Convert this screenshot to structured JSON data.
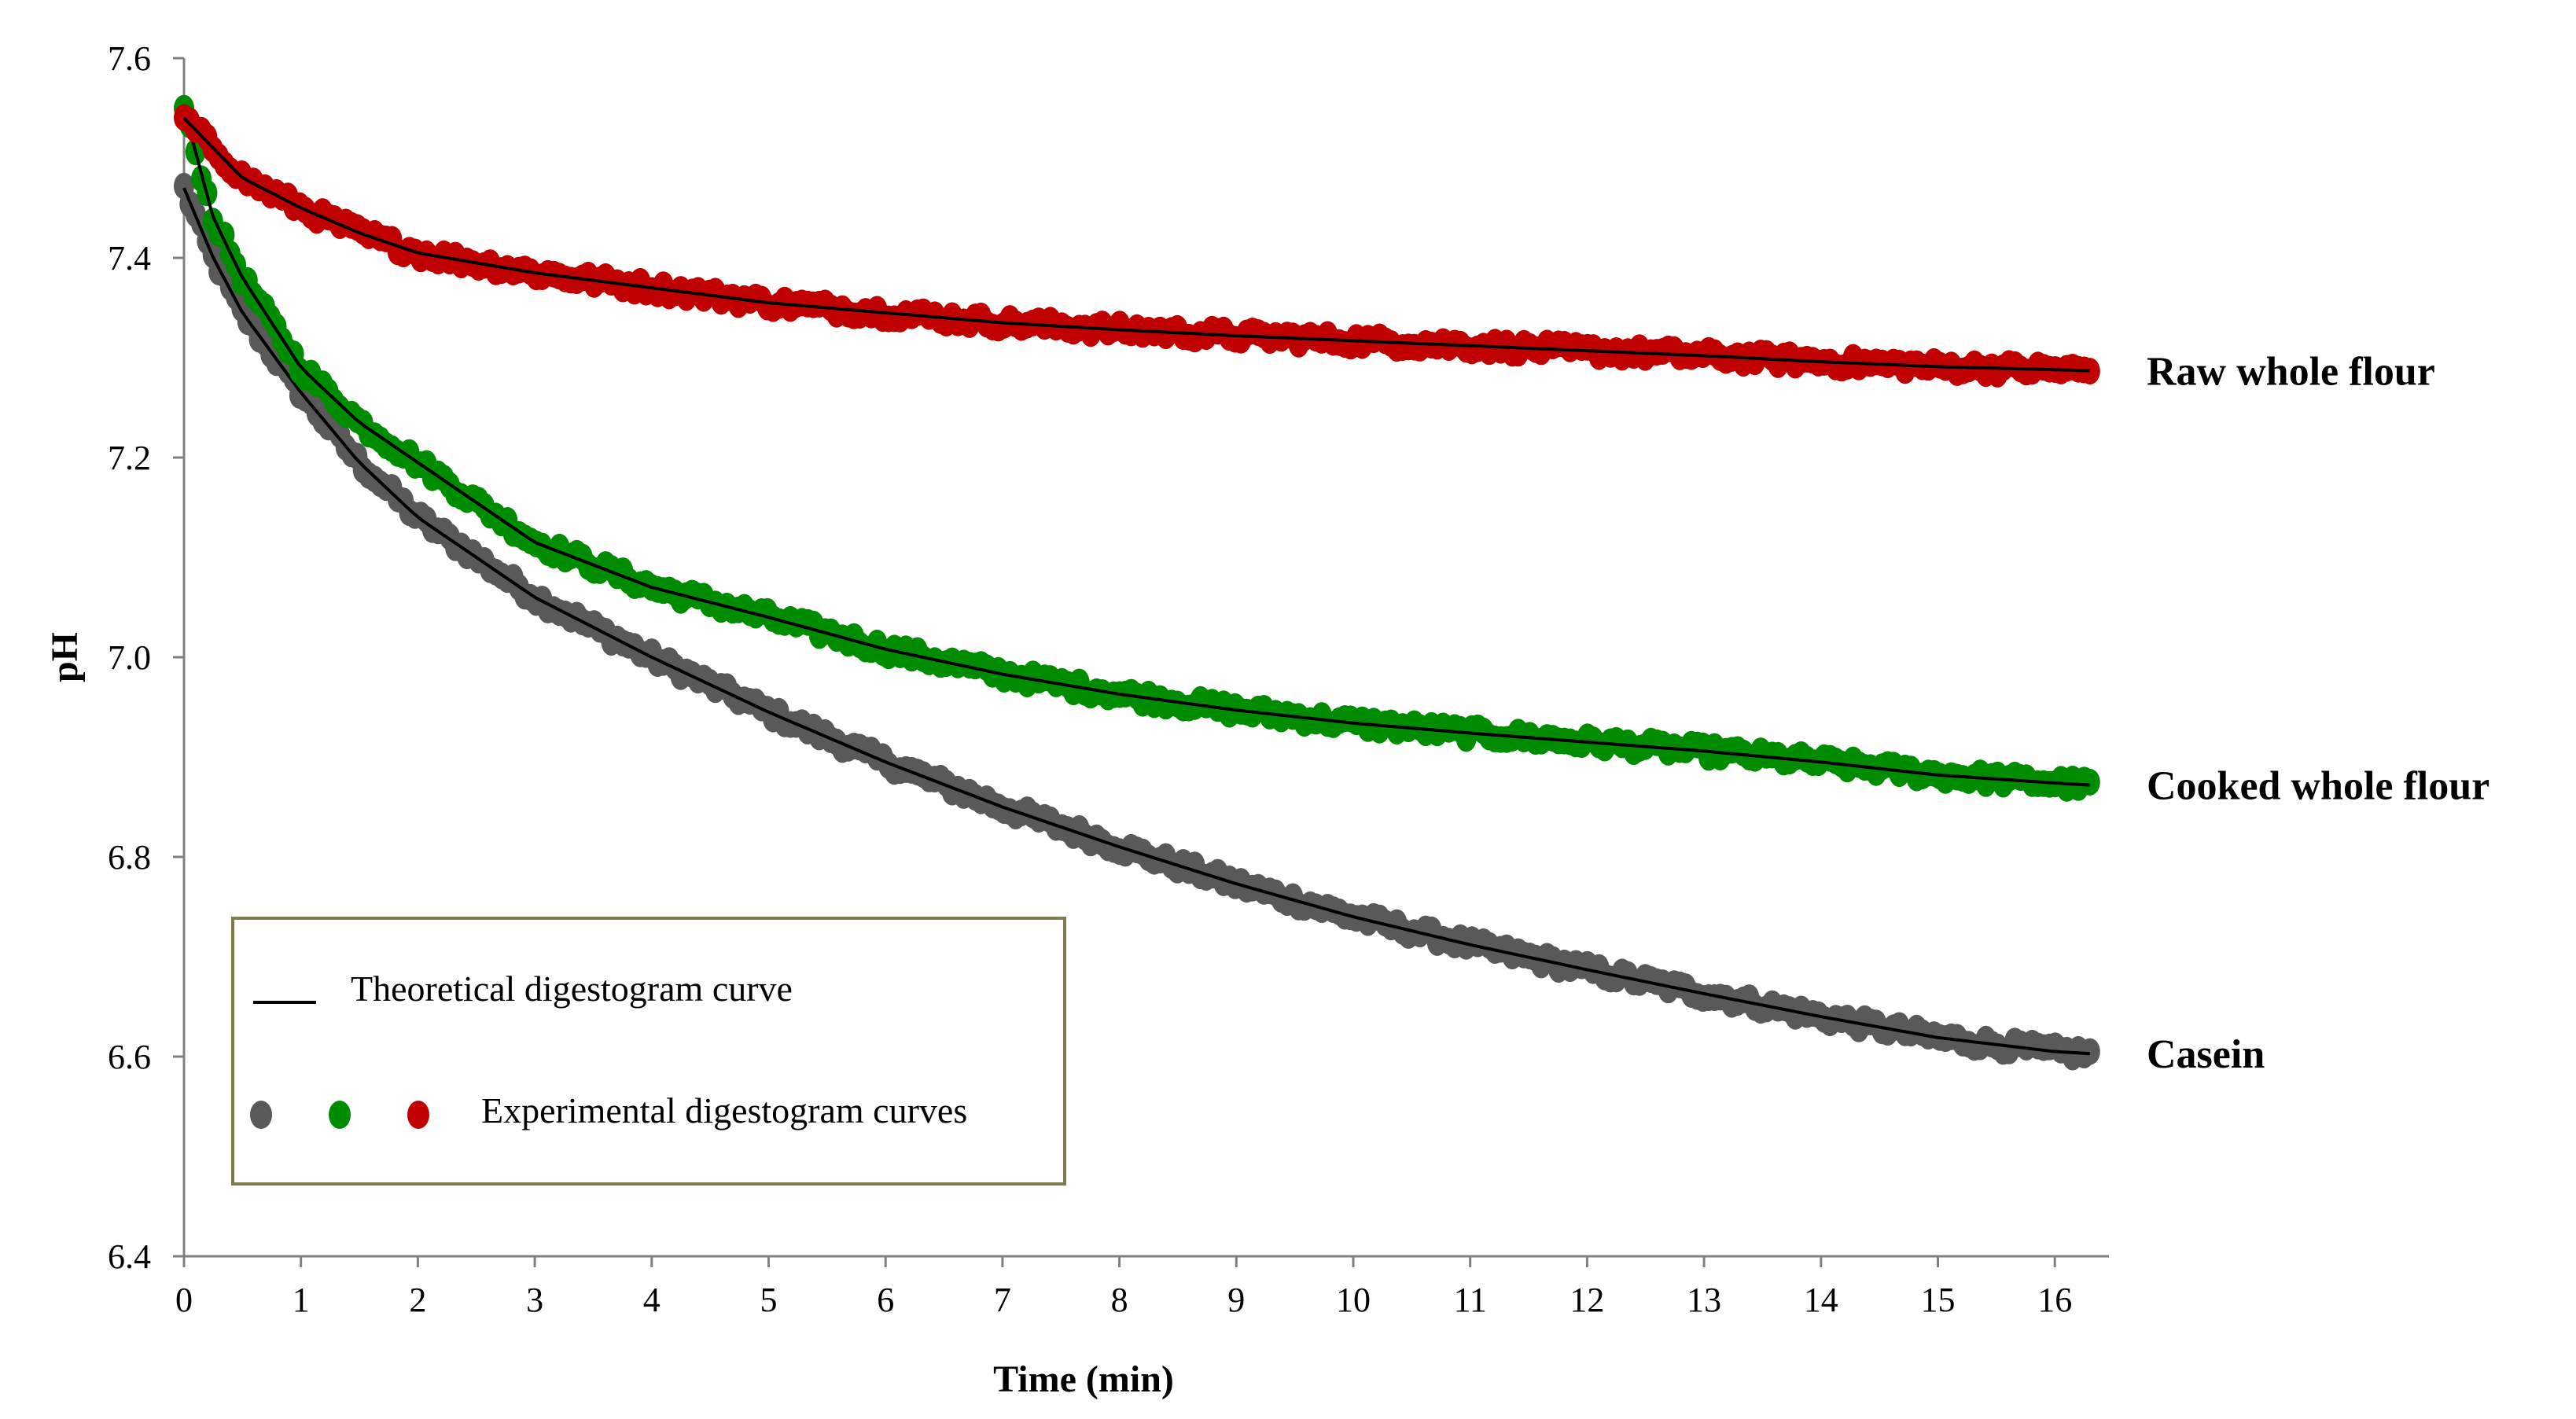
{
  "chart_data": {
    "type": "scatter",
    "title": "",
    "xlabel": "Time (min)",
    "ylabel": "pH",
    "xlim": [
      0,
      16.4
    ],
    "ylim": [
      6.4,
      7.6
    ],
    "x_ticks": [
      "0",
      "1",
      "2",
      "3",
      "4",
      "5",
      "6",
      "7",
      "8",
      "9",
      "10",
      "11",
      "12",
      "13",
      "14",
      "15",
      "16"
    ],
    "y_ticks": [
      "6.4",
      "6.6",
      "6.8",
      "7.0",
      "7.2",
      "7.4",
      "7.6"
    ],
    "grid": false,
    "legend": {
      "position": "bottom-left",
      "line_label": "Theoretical digestogram curve",
      "markers_label": "Experimental digestogram curves"
    },
    "series": [
      {
        "name": "Raw whole flour",
        "color": "#c00000",
        "fit_color": "#000000",
        "x": [
          0,
          0.5,
          1,
          1.5,
          2,
          3,
          4,
          5,
          6,
          7,
          8,
          9,
          10,
          11,
          12,
          13,
          14,
          15,
          16,
          16.3
        ],
        "y": [
          7.54,
          7.48,
          7.45,
          7.425,
          7.405,
          7.385,
          7.37,
          7.355,
          7.345,
          7.335,
          7.328,
          7.322,
          7.317,
          7.312,
          7.307,
          7.302,
          7.296,
          7.291,
          7.288,
          7.287
        ]
      },
      {
        "name": "Cooked whole flour",
        "color": "#008c00",
        "fit_color": "#000000",
        "x": [
          0,
          0.25,
          0.5,
          1,
          1.5,
          2,
          3,
          4,
          5,
          6,
          7,
          8,
          9,
          10,
          11,
          12,
          13,
          14,
          15,
          16,
          16.3
        ],
        "y": [
          7.55,
          7.44,
          7.38,
          7.29,
          7.235,
          7.195,
          7.115,
          7.07,
          7.04,
          7.008,
          6.983,
          6.963,
          6.947,
          6.934,
          6.924,
          6.915,
          6.906,
          6.895,
          6.882,
          6.874,
          6.872
        ]
      },
      {
        "name": "Casein",
        "color": "#595959",
        "fit_color": "#000000",
        "x": [
          0,
          0.25,
          0.5,
          1,
          1.5,
          2,
          3,
          4,
          5,
          6,
          7,
          8,
          9,
          10,
          11,
          12,
          13,
          14,
          15,
          16,
          16.3
        ],
        "y": [
          7.47,
          7.4,
          7.345,
          7.265,
          7.195,
          7.14,
          7.06,
          7.0,
          6.945,
          6.895,
          6.85,
          6.81,
          6.773,
          6.74,
          6.712,
          6.687,
          6.663,
          6.64,
          6.619,
          6.605,
          6.603
        ]
      }
    ]
  }
}
